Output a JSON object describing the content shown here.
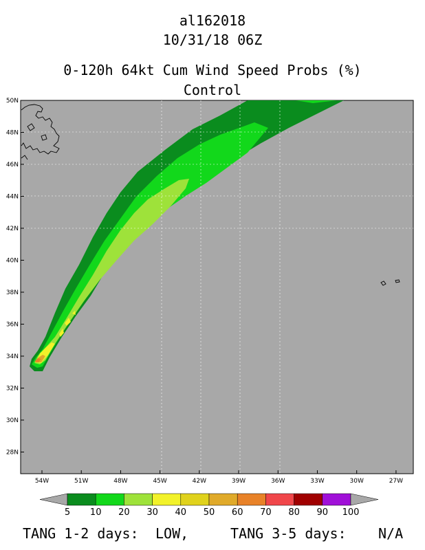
{
  "header": {
    "storm_id": "al162018",
    "datetime": "10/31/18 06Z",
    "product": "0-120h 64kt Cum Wind Speed Probs (%)",
    "run": "Control"
  },
  "map": {
    "lat_labels": [
      "50N",
      "48N",
      "46N",
      "44N",
      "42N",
      "40N",
      "38N",
      "36N",
      "34N",
      "32N",
      "30N",
      "28N"
    ],
    "lat_values": [
      50,
      48,
      46,
      44,
      42,
      40,
      38,
      36,
      34,
      32,
      30,
      28
    ],
    "lon_labels": [
      "54W",
      "51W",
      "48W",
      "45W",
      "42W",
      "39W",
      "36W",
      "33W",
      "30W",
      "27W"
    ],
    "lon_values": [
      54,
      51,
      48,
      45,
      42,
      39,
      36,
      33,
      30,
      27
    ],
    "background_color": "#a8a8a8",
    "land_outline": "coastline-icon"
  },
  "colorbar": {
    "labels": [
      "5",
      "10",
      "20",
      "30",
      "40",
      "50",
      "60",
      "70",
      "80",
      "90",
      "100"
    ],
    "colors": [
      "#0a8c1e",
      "#12d81b",
      "#9ee23a",
      "#f2f22a",
      "#e0d21c",
      "#e0aa2a",
      "#e88228",
      "#f0464a",
      "#a00000",
      "#a010d8"
    ],
    "end_color": "#a8a8a8"
  },
  "footer": {
    "tang12_label": "TANG 1-2 days:",
    "tang12_value": "LOW,",
    "tang35_label": "TANG 3-5 days:",
    "tang35_value": "N/A"
  }
}
